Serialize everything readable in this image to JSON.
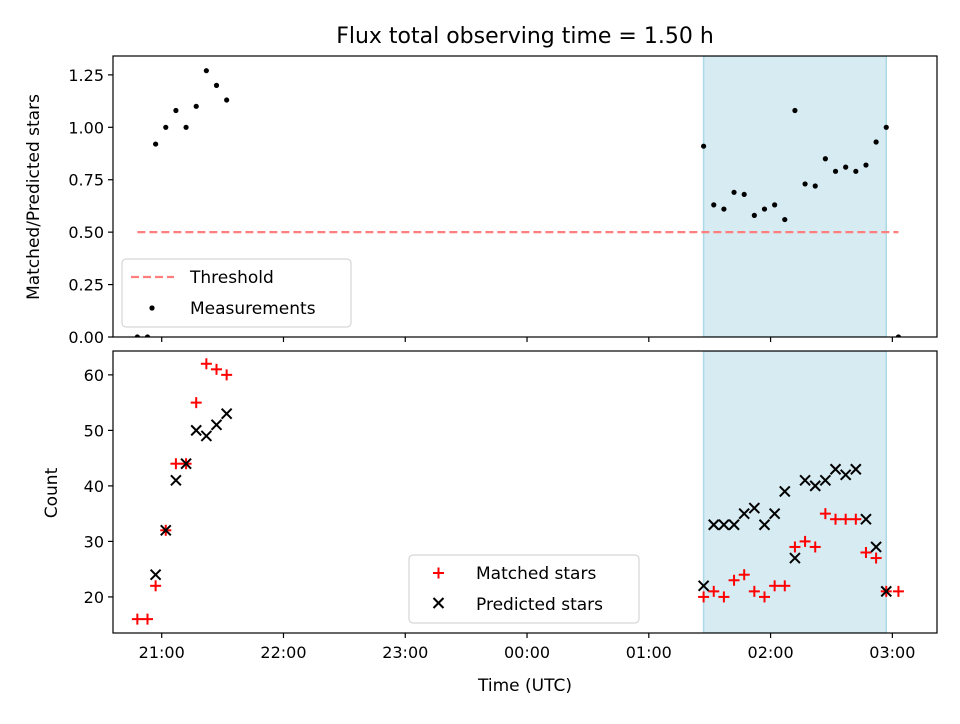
{
  "title": "Flux total observing time = 1.50 h",
  "colors": {
    "threshold": "#ff7f7f",
    "shade": "#add8e6",
    "matched": "#ff0000",
    "predicted": "#000000",
    "points": "#000000"
  },
  "chart_data": [
    {
      "type": "scatter",
      "ylabel": "Matched/Predicted stars",
      "xlim": [
        "20:36",
        "03:22"
      ],
      "ylim": [
        0,
        1.34
      ],
      "yticks": [
        0.0,
        0.25,
        0.5,
        0.75,
        1.0,
        1.25
      ],
      "ytick_labels": [
        "0.00",
        "0.25",
        "0.50",
        "0.75",
        "1.00",
        "1.25"
      ],
      "shaded_interval": [
        "01:27",
        "02:57"
      ],
      "threshold": {
        "label": "Threshold",
        "y": 0.5,
        "x_range": [
          "20:48",
          "03:03"
        ]
      },
      "series": [
        {
          "name": "Measurements",
          "x": [
            "20:48",
            "20:53",
            "20:57",
            "21:02",
            "21:07",
            "21:12",
            "21:17",
            "21:22",
            "21:27",
            "21:32",
            "01:27",
            "01:32",
            "01:37",
            "01:42",
            "01:47",
            "01:52",
            "01:57",
            "02:02",
            "02:07",
            "02:12",
            "02:17",
            "02:22",
            "02:27",
            "02:32",
            "02:37",
            "02:42",
            "02:47",
            "02:52",
            "02:57",
            "03:03"
          ],
          "y": [
            0.0,
            0.0,
            0.92,
            1.0,
            1.08,
            1.0,
            1.1,
            1.27,
            1.2,
            1.13,
            0.91,
            0.63,
            0.61,
            0.69,
            0.68,
            0.58,
            0.61,
            0.63,
            0.56,
            1.08,
            0.73,
            0.72,
            0.85,
            0.79,
            0.81,
            0.79,
            0.82,
            0.93,
            1.0,
            0.0
          ]
        }
      ],
      "legend": [
        "Threshold",
        "Measurements"
      ],
      "legend_position": "lower-left"
    },
    {
      "type": "scatter",
      "xlabel": "Time (UTC)",
      "ylabel": "Count",
      "xlim": [
        "20:36",
        "03:22"
      ],
      "ylim": [
        13.5,
        64.3
      ],
      "xticks": [
        "21:00",
        "22:00",
        "23:00",
        "00:00",
        "01:00",
        "02:00",
        "03:00"
      ],
      "yticks": [
        20,
        30,
        40,
        50,
        60
      ],
      "shaded_interval": [
        "01:27",
        "02:57"
      ],
      "series": [
        {
          "name": "Matched stars",
          "marker": "+",
          "x": [
            "20:48",
            "20:53",
            "20:57",
            "21:02",
            "21:07",
            "21:12",
            "21:17",
            "21:22",
            "21:27",
            "21:32",
            "01:27",
            "01:32",
            "01:37",
            "01:42",
            "01:47",
            "01:52",
            "01:57",
            "02:02",
            "02:07",
            "02:12",
            "02:17",
            "02:22",
            "02:27",
            "02:32",
            "02:37",
            "02:42",
            "02:47",
            "02:52",
            "02:57",
            "03:03"
          ],
          "y": [
            16,
            16,
            22,
            32,
            44,
            44,
            55,
            62,
            61,
            60,
            20,
            21,
            20,
            23,
            24,
            21,
            20,
            22,
            22,
            29,
            30,
            29,
            35,
            34,
            34,
            34,
            28,
            27,
            21,
            21
          ]
        },
        {
          "name": "Predicted stars",
          "marker": "x",
          "x": [
            "20:57",
            "21:02",
            "21:07",
            "21:12",
            "21:17",
            "21:22",
            "21:27",
            "21:32",
            "01:27",
            "01:32",
            "01:37",
            "01:42",
            "01:47",
            "01:52",
            "01:57",
            "02:02",
            "02:07",
            "02:12",
            "02:17",
            "02:22",
            "02:27",
            "02:32",
            "02:37",
            "02:42",
            "02:47",
            "02:52",
            "02:57"
          ],
          "y": [
            24,
            32,
            41,
            44,
            50,
            49,
            51,
            53,
            22,
            33,
            33,
            33,
            35,
            36,
            33,
            35,
            39,
            27,
            41,
            40,
            41,
            43,
            42,
            43,
            34,
            29,
            21
          ]
        }
      ],
      "legend": [
        "Matched stars",
        "Predicted stars"
      ],
      "legend_position": "lower-center"
    }
  ]
}
